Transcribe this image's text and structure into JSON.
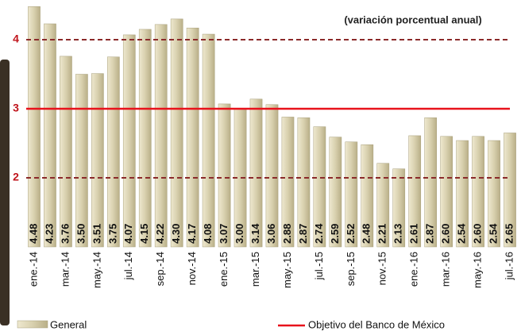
{
  "chart_data": {
    "type": "bar",
    "annotation": "(variación porcentual anual)",
    "categories": [
      "ene.-14",
      null,
      "mar.-14",
      null,
      "may.-14",
      null,
      "jul.-14",
      null,
      "sep.-14",
      null,
      "nov.-14",
      null,
      "ene.-15",
      null,
      "mar.-15",
      null,
      "may.-15",
      null,
      "jul.-15",
      null,
      "sep.-15",
      null,
      "nov.-15",
      null,
      "ene.-16",
      null,
      "mar.-16",
      null,
      "may.-16",
      null,
      "jul.-16"
    ],
    "series": [
      {
        "name": "General",
        "color": "#d8d0ae",
        "values": [
          4.48,
          4.23,
          3.76,
          3.5,
          3.51,
          3.75,
          4.07,
          4.15,
          4.22,
          4.3,
          4.17,
          4.08,
          3.07,
          3.0,
          3.14,
          3.06,
          2.88,
          2.87,
          2.74,
          2.59,
          2.52,
          2.48,
          2.21,
          2.13,
          2.61,
          2.87,
          2.6,
          2.54,
          2.6,
          2.54,
          2.65
        ],
        "value_labels": [
          "4.48",
          "4.23",
          "3.76",
          "3.50",
          "3.51",
          "3.75",
          "4.07",
          "4.15",
          "4.22",
          "4.30",
          "4.17",
          "4.08",
          "3.07",
          "3.00",
          "3.14",
          "3.06",
          "2.88",
          "2.87",
          "2.74",
          "2.59",
          "2.52",
          "2.48",
          "2.21",
          "2.13",
          "2.61",
          "2.87",
          "2.60",
          "2.54",
          "2.60",
          "2.54",
          "2.65"
        ]
      }
    ],
    "target": {
      "name": "Objetivo del Banco de México",
      "value": 3,
      "color": "#e8121c"
    },
    "band": {
      "values": [
        2,
        4
      ],
      "color": "#8b2a2a"
    },
    "ylim": [
      1,
      4.5
    ],
    "yticks": [
      2,
      3,
      4
    ],
    "ytick_color": "#c0141c"
  }
}
